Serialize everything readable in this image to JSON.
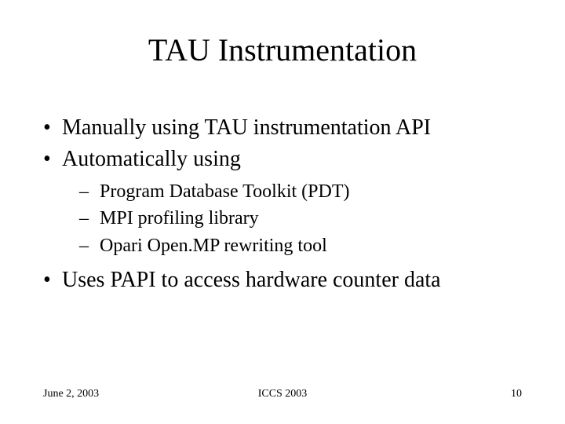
{
  "title": "TAU Instrumentation",
  "bullets": {
    "b0": "Manually using TAU instrumentation API",
    "b1": "Automatically using",
    "b1_sub": {
      "s0": "Program Database Toolkit (PDT)",
      "s1": "MPI profiling library",
      "s2": "Opari Open.MP rewriting tool"
    },
    "b2": "Uses PAPI to access hardware counter data"
  },
  "footer": {
    "date": "June 2, 2003",
    "venue": "ICCS 2003",
    "page": "10"
  },
  "style": {
    "background_color": "#ffffff",
    "text_color": "#000000",
    "title_fontsize": 40,
    "bullet_fontsize": 28,
    "subbullet_fontsize": 24,
    "footer_fontsize": 14,
    "font_family": "Times New Roman"
  }
}
